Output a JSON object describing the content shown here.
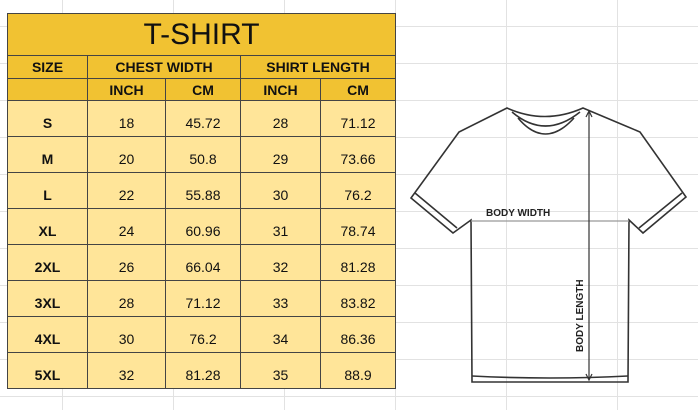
{
  "title": "T-SHIRT",
  "headers": {
    "size": "SIZE",
    "chest": "CHEST WIDTH",
    "length": "SHIRT LENGTH",
    "inch1": "INCH",
    "cm1": "CM",
    "inch2": "INCH",
    "cm2": "CM"
  },
  "rows": [
    [
      "S",
      "18",
      "45.72",
      "28",
      "71.12"
    ],
    [
      "M",
      "20",
      "50.8",
      "29",
      "73.66"
    ],
    [
      "L",
      "22",
      "55.88",
      "30",
      "76.2"
    ],
    [
      "XL",
      "24",
      "60.96",
      "31",
      "78.74"
    ],
    [
      "2XL",
      "26",
      "66.04",
      "32",
      "81.28"
    ],
    [
      "3XL",
      "28",
      "71.12",
      "33",
      "83.82"
    ],
    [
      "4XL",
      "30",
      "76.2",
      "34",
      "86.36"
    ],
    [
      "5XL",
      "32",
      "81.28",
      "35",
      "88.9"
    ]
  ],
  "diagram": {
    "width_label": "BODY WIDTH",
    "length_label": "BODY LENGTH"
  },
  "colors": {
    "header": "#f1c232",
    "row": "#ffe599"
  }
}
